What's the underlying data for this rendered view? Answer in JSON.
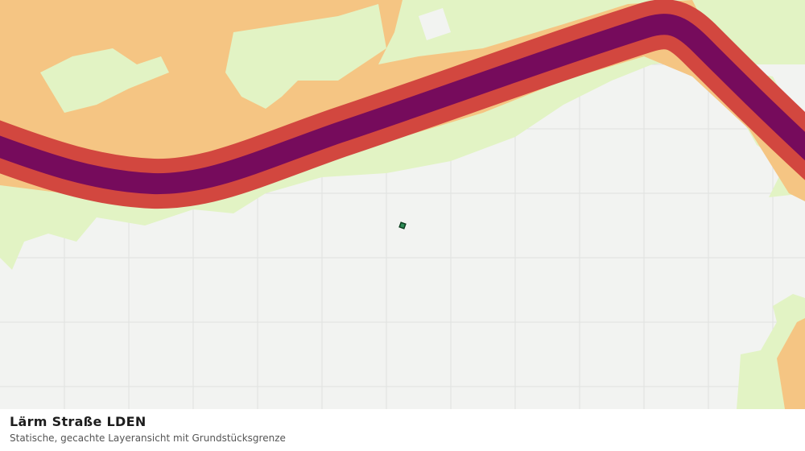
{
  "header": {
    "title": "Lärm Straße LDEN",
    "subtitle": "Statische, gecachte Layeransicht mit Grundstücksgrenze"
  }
}
